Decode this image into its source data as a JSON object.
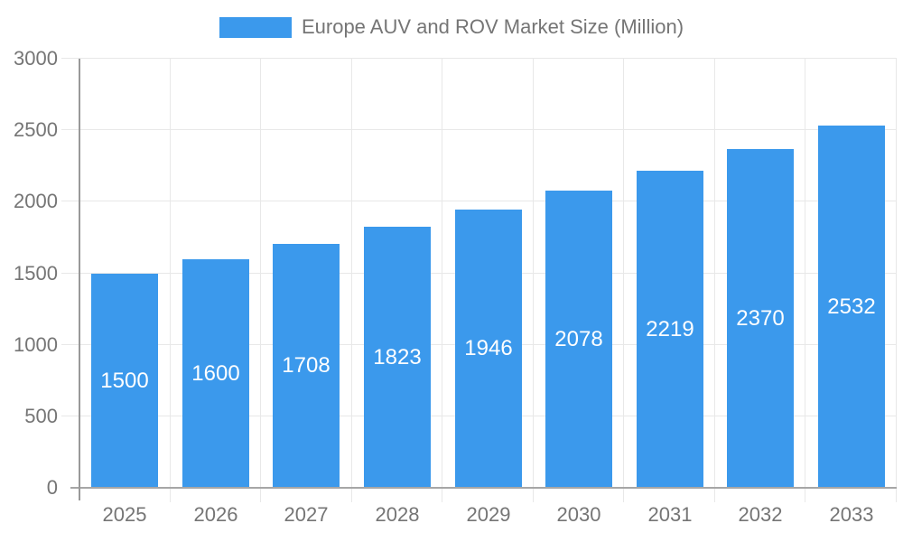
{
  "chart_data": {
    "type": "bar",
    "title": "Europe AUV and ROV Market Size (Million)",
    "series_name": "Europe AUV and ROV Market Size (Million)",
    "categories": [
      "2025",
      "2026",
      "2027",
      "2028",
      "2029",
      "2030",
      "2031",
      "2032",
      "2033"
    ],
    "values": [
      1500,
      1600,
      1708,
      1823,
      1946,
      2078,
      2219,
      2370,
      2532
    ],
    "xlabel": "",
    "ylabel": "",
    "ylim": [
      0,
      3000
    ],
    "yticks": [
      0,
      500,
      1000,
      1500,
      2000,
      2500,
      3000
    ],
    "grid": true,
    "legend_position": "top-center",
    "colors": {
      "bar": "#3B99EC",
      "value_label": "#FFFFFF",
      "axis_label": "#757575",
      "legend_label": "#757575",
      "gridline": "#E8E8E8",
      "axis_line": "#A6A6A6",
      "background": "#FFFFFF"
    }
  }
}
